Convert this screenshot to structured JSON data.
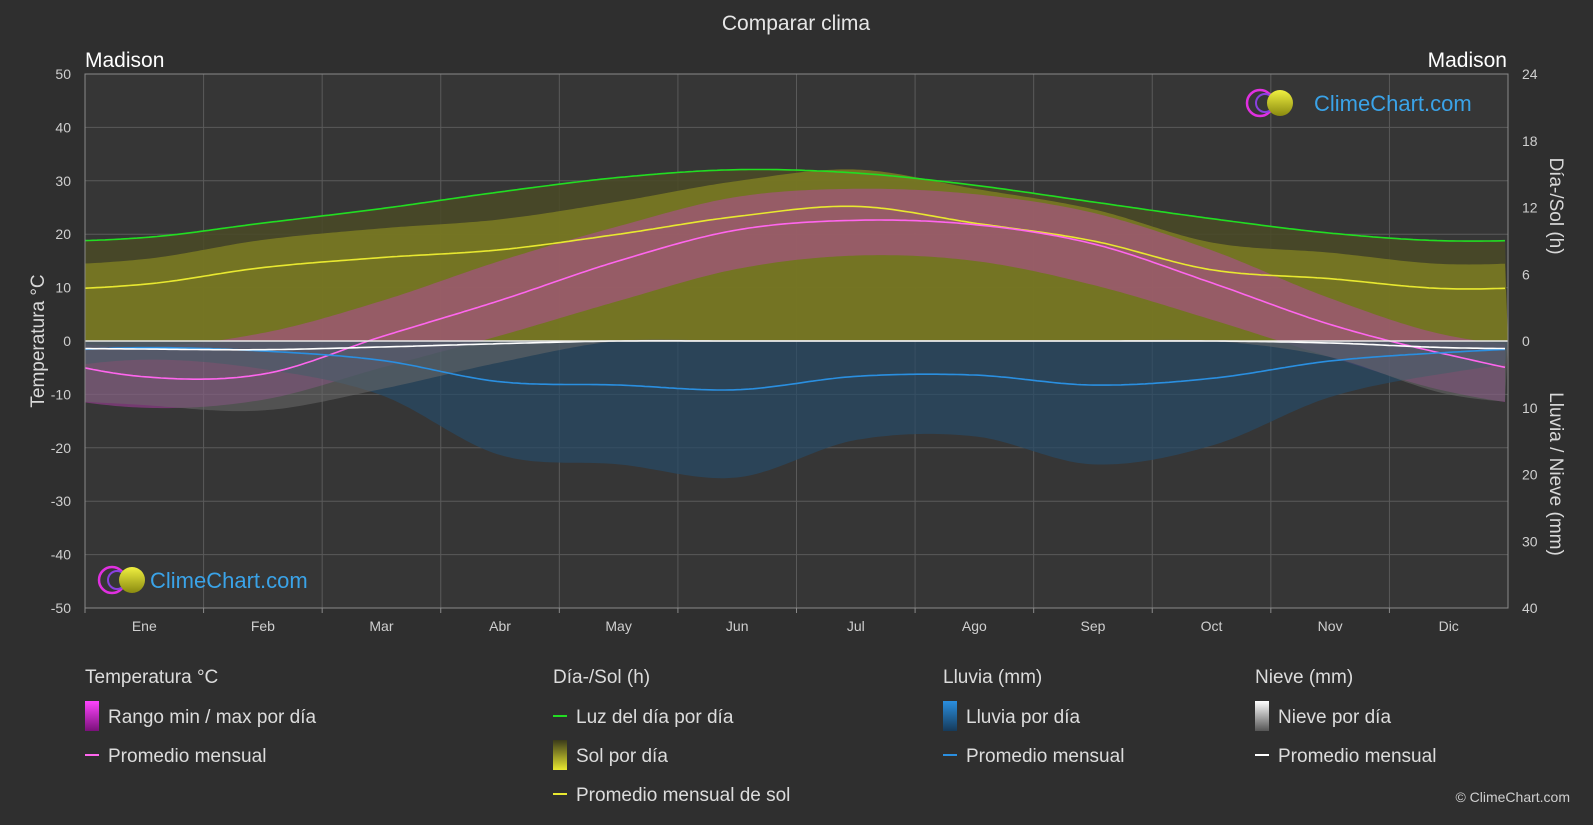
{
  "chart_data": {
    "type": "area",
    "title": "Comparar clima",
    "location_left": "Madison",
    "location_right": "Madison",
    "categories": [
      "Ene",
      "Feb",
      "Mar",
      "Abr",
      "May",
      "Jun",
      "Jul",
      "Ago",
      "Sep",
      "Oct",
      "Nov",
      "Dic"
    ],
    "y_left": {
      "label": "Temperatura °C",
      "ticks": [
        50,
        40,
        30,
        20,
        10,
        0,
        -10,
        -20,
        -30,
        -40,
        -50
      ],
      "ylim": [
        -50,
        50
      ]
    },
    "y_right_top": {
      "label": "Día-/Sol (h)",
      "ticks": [
        24,
        18,
        12,
        6,
        0
      ],
      "ylim": [
        0,
        24
      ]
    },
    "y_right_bottom": {
      "label": "Lluvia / Nieve (mm)",
      "ticks": [
        0,
        10,
        20,
        30,
        40
      ],
      "ylim": [
        0,
        40
      ]
    },
    "grid": true,
    "series": [
      {
        "name": "Luz del día por día",
        "unit": "h",
        "color": "#22dd22",
        "values": [
          9.3,
          10.6,
          11.9,
          13.4,
          14.7,
          15.4,
          15.1,
          14.0,
          12.5,
          11.0,
          9.7,
          9.0
        ]
      },
      {
        "name": "Promedio mensual de sol",
        "unit": "h",
        "color": "#e8e830",
        "values": [
          5.1,
          6.6,
          7.5,
          8.2,
          9.6,
          11.2,
          12.1,
          10.6,
          9.0,
          6.4,
          5.6,
          4.7
        ]
      },
      {
        "name": "Promedio mensual",
        "group": "Temperatura °C",
        "unit": "°C",
        "color": "#ff66ee",
        "values": [
          -6.7,
          -6.2,
          0.8,
          7.6,
          15.0,
          20.8,
          22.6,
          21.8,
          18.2,
          10.9,
          3.1,
          -2.6
        ]
      },
      {
        "name": "Promedio mensual",
        "group": "Lluvia (mm)",
        "unit": "mm",
        "color": "#2a8fe0",
        "values": [
          1.0,
          1.5,
          2.9,
          6.1,
          6.6,
          7.3,
          5.3,
          5.1,
          6.6,
          5.6,
          3.0,
          1.7
        ]
      },
      {
        "name": "Promedio mensual",
        "group": "Nieve (mm)",
        "unit": "mm",
        "color": "#ffffff",
        "values": [
          1.2,
          1.3,
          0.9,
          0.4,
          0.0,
          0.0,
          0.0,
          0.0,
          0.0,
          0.0,
          0.3,
          1.0
        ]
      }
    ],
    "temp_range_min": [
      -12.5,
      -11.0,
      -5.0,
      1.0,
      7.5,
      13.5,
      16.0,
      15.0,
      10.5,
      4.0,
      -3.0,
      -9.5
    ],
    "temp_range_max": [
      -1.0,
      1.5,
      7.5,
      15.0,
      21.5,
      27.0,
      28.5,
      27.5,
      24.0,
      17.0,
      8.0,
      1.0
    ],
    "legend": {
      "groups": [
        {
          "header": "Temperatura °C",
          "items": [
            {
              "label": "Rango min / max por día",
              "swatch": "bar",
              "color": "#e020e0"
            },
            {
              "label": "Promedio mensual",
              "swatch": "line",
              "color": "#ff66ee"
            }
          ]
        },
        {
          "header": "Día-/Sol (h)",
          "items": [
            {
              "label": "Luz del día por día",
              "swatch": "line",
              "color": "#22dd22"
            },
            {
              "label": "Sol por día",
              "swatch": "bar",
              "color": "#d8d830"
            },
            {
              "label": "Promedio mensual de sol",
              "swatch": "line",
              "color": "#e8e830"
            }
          ]
        },
        {
          "header": "Lluvia (mm)",
          "items": [
            {
              "label": "Lluvia por día",
              "swatch": "bar",
              "color": "#2a8fe0"
            },
            {
              "label": "Promedio mensual",
              "swatch": "line",
              "color": "#2a8fe0"
            }
          ]
        },
        {
          "header": "Nieve (mm)",
          "items": [
            {
              "label": "Nieve por día",
              "swatch": "bar",
              "color": "#dddddd"
            },
            {
              "label": "Promedio mensual",
              "swatch": "line",
              "color": "#ffffff"
            }
          ]
        }
      ]
    },
    "brand": "ClimeChart.com",
    "copyright": "© ClimeChart.com"
  }
}
